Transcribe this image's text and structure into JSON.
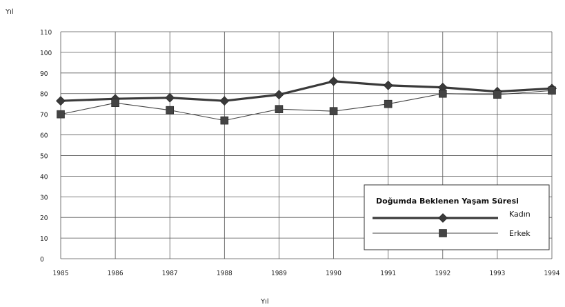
{
  "chart_data": {
    "type": "line",
    "title": "",
    "ylabel": "Yıl",
    "xlabel": "Yıl",
    "x": [
      "1985",
      "1986",
      "1987",
      "1988",
      "1989",
      "1990",
      "1991",
      "1992",
      "1993",
      "1994"
    ],
    "ylim": [
      0,
      110
    ],
    "yticks": [
      0,
      10,
      20,
      30,
      40,
      50,
      60,
      70,
      80,
      90,
      100,
      110
    ],
    "grid": true,
    "legend": {
      "title": "Doğumda Beklenen Yaşam Süresi",
      "placement": "bottom-right"
    },
    "series": [
      {
        "name": "Kadın",
        "marker": "diamond",
        "color": "#3a3a3a",
        "values": [
          76.5,
          77.5,
          78,
          76.5,
          79.5,
          86,
          84,
          83,
          81,
          82.5
        ]
      },
      {
        "name": "Erkek",
        "marker": "square",
        "color": "#444444",
        "values": [
          70,
          75.5,
          72,
          67,
          72.5,
          71.5,
          75,
          80,
          79.5,
          81.5
        ]
      }
    ]
  }
}
